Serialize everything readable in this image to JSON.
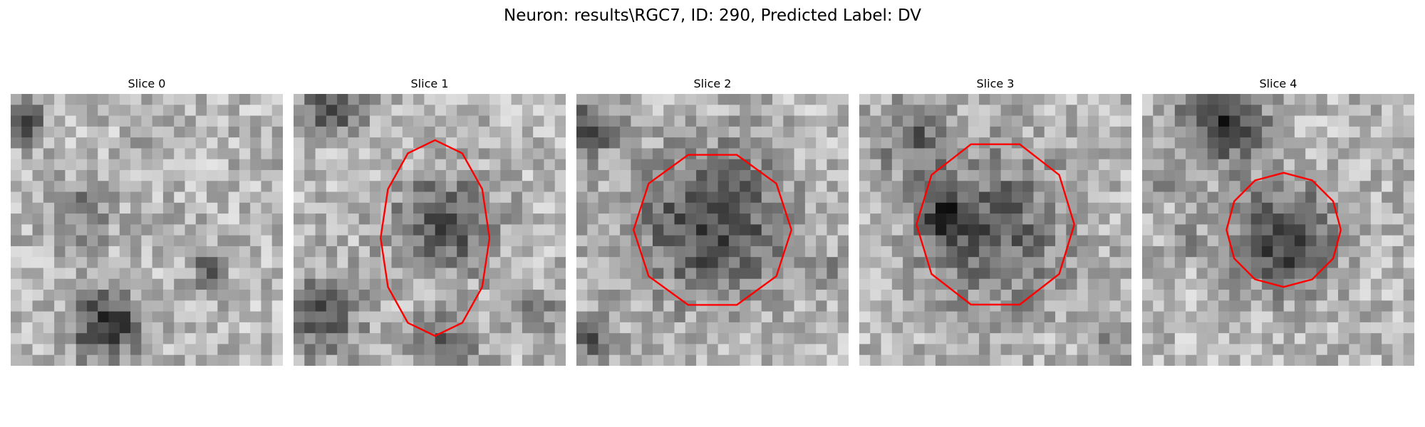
{
  "figure": {
    "title": "Neuron: results\\RGC7, ID: 290, Predicted Label: DV"
  },
  "panels": [
    {
      "label": "Slice 0",
      "has_contour": false
    },
    {
      "label": "Slice 1",
      "has_contour": true
    },
    {
      "label": "Slice 2",
      "has_contour": true
    },
    {
      "label": "Slice 3",
      "has_contour": true
    },
    {
      "label": "Slice 4",
      "has_contour": true
    }
  ],
  "colors": {
    "contour": "#ff0000",
    "background": "#ffffff"
  },
  "image": {
    "colormap": "gray",
    "pixel_grid": 25
  }
}
